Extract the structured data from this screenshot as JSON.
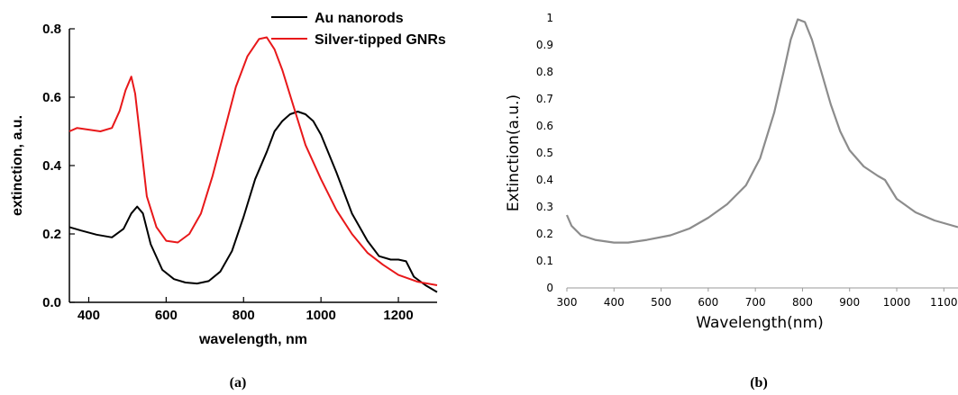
{
  "panel_a": {
    "caption": "(a)",
    "ylabel": "extinction, a.u.",
    "xlabel": "wavelength, nm",
    "xticks": [
      "400",
      "600",
      "800",
      "1000",
      "1200"
    ],
    "yticks": [
      "0.0",
      "0.2",
      "0.4",
      "0.6",
      "0.8"
    ],
    "legend": [
      "Au nanorods",
      "Silver-tipped GNRs"
    ]
  },
  "panel_b": {
    "caption": "(b)",
    "ylabel": "Extinction(a.u.)",
    "xlabel": "Wavelength(nm)",
    "xticks": [
      "300",
      "400",
      "500",
      "600",
      "700",
      "800",
      "900",
      "1000",
      "1100"
    ],
    "yticks": [
      "0",
      "0.1",
      "0.2",
      "0.3",
      "0.4",
      "0.5",
      "0.6",
      "0.7",
      "0.8",
      "0.9",
      "1"
    ]
  },
  "colors": {
    "au": "#000000",
    "silver": "#e8181a",
    "panel_b": "#8c8c8c"
  },
  "chart_data": [
    {
      "type": "line",
      "xlabel": "wavelength, nm",
      "ylabel": "extinction, a.u.",
      "xlim": [
        350,
        1300
      ],
      "ylim": [
        0.0,
        0.8
      ],
      "legend_position": "top-right",
      "series": [
        {
          "name": "Au nanorods",
          "x": [
            350,
            380,
            420,
            460,
            490,
            510,
            525,
            540,
            560,
            590,
            620,
            650,
            680,
            710,
            740,
            770,
            800,
            830,
            860,
            880,
            900,
            920,
            940,
            960,
            980,
            1000,
            1040,
            1080,
            1120,
            1150,
            1180,
            1200,
            1220,
            1240,
            1270,
            1300
          ],
          "values": [
            0.22,
            0.21,
            0.198,
            0.19,
            0.215,
            0.26,
            0.28,
            0.26,
            0.17,
            0.095,
            0.068,
            0.058,
            0.055,
            0.062,
            0.09,
            0.15,
            0.25,
            0.36,
            0.44,
            0.5,
            0.53,
            0.55,
            0.558,
            0.55,
            0.53,
            0.49,
            0.38,
            0.26,
            0.18,
            0.135,
            0.125,
            0.125,
            0.12,
            0.075,
            0.05,
            0.03
          ]
        },
        {
          "name": "Silver-tipped GNRs",
          "x": [
            350,
            370,
            400,
            430,
            460,
            480,
            495,
            510,
            520,
            535,
            550,
            575,
            600,
            630,
            660,
            690,
            720,
            750,
            780,
            810,
            840,
            860,
            880,
            900,
            930,
            960,
            1000,
            1040,
            1080,
            1120,
            1160,
            1200,
            1250,
            1300
          ],
          "values": [
            0.5,
            0.51,
            0.505,
            0.5,
            0.51,
            0.56,
            0.62,
            0.66,
            0.61,
            0.46,
            0.31,
            0.22,
            0.18,
            0.175,
            0.2,
            0.26,
            0.37,
            0.5,
            0.63,
            0.72,
            0.77,
            0.775,
            0.74,
            0.68,
            0.57,
            0.46,
            0.36,
            0.27,
            0.2,
            0.145,
            0.11,
            0.08,
            0.06,
            0.05
          ]
        }
      ]
    },
    {
      "type": "line",
      "xlabel": "Wavelength(nm)",
      "ylabel": "Extinction(a.u.)",
      "xlim": [
        300,
        1130
      ],
      "ylim": [
        0,
        1
      ],
      "series": [
        {
          "x": [
            300,
            310,
            330,
            360,
            400,
            430,
            470,
            520,
            560,
            600,
            640,
            680,
            710,
            740,
            760,
            775,
            790,
            805,
            820,
            840,
            860,
            880,
            900,
            930,
            960,
            975,
            1000,
            1040,
            1080,
            1130
          ],
          "values": [
            0.27,
            0.23,
            0.195,
            0.178,
            0.168,
            0.168,
            0.178,
            0.195,
            0.22,
            0.26,
            0.31,
            0.38,
            0.48,
            0.65,
            0.8,
            0.92,
            0.995,
            0.985,
            0.92,
            0.8,
            0.68,
            0.58,
            0.51,
            0.45,
            0.415,
            0.4,
            0.33,
            0.28,
            0.25,
            0.225
          ]
        }
      ]
    }
  ]
}
